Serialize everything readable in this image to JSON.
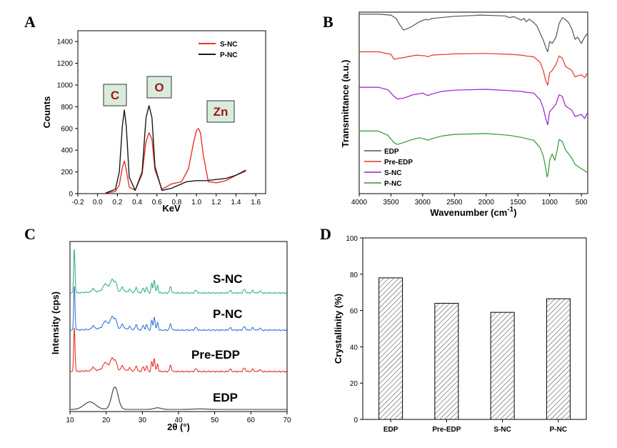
{
  "chart_data": [
    {
      "panel": "A",
      "type": "line",
      "xlabel": "KeV",
      "ylabel": "Counts",
      "xlim": [
        -0.2,
        1.7
      ],
      "ylim": [
        0,
        1500
      ],
      "xticks": [
        "-0.2",
        "0.0",
        "0.2",
        "0.4",
        "0.6",
        "0.8",
        "1.0",
        "1.2",
        "1.4",
        "1.6"
      ],
      "yticks": [
        "0",
        "200",
        "400",
        "600",
        "800",
        "1000",
        "1200",
        "1400"
      ],
      "legend": [
        "S-NC",
        "P-NC"
      ],
      "legend_position": "top-right",
      "annotations": [
        "C",
        "O",
        "Zn"
      ],
      "series": [
        {
          "name": "S-NC",
          "color": "#e8322a",
          "x": [
            0.08,
            0.18,
            0.22,
            0.25,
            0.27,
            0.29,
            0.32,
            0.38,
            0.45,
            0.49,
            0.52,
            0.55,
            0.58,
            0.65,
            0.75,
            0.85,
            0.92,
            0.97,
            1.0,
            1.02,
            1.04,
            1.07,
            1.12,
            1.2,
            1.3,
            1.4,
            1.5
          ],
          "y": [
            5,
            20,
            80,
            240,
            300,
            220,
            60,
            30,
            180,
            480,
            560,
            500,
            220,
            40,
            90,
            110,
            230,
            470,
            580,
            600,
            560,
            350,
            110,
            100,
            120,
            170,
            220
          ]
        },
        {
          "name": "P-NC",
          "color": "#1a1a1a",
          "x": [
            0.08,
            0.18,
            0.22,
            0.25,
            0.27,
            0.29,
            0.32,
            0.38,
            0.45,
            0.49,
            0.52,
            0.55,
            0.58,
            0.65,
            0.75,
            0.9,
            1.0,
            1.1,
            1.2,
            1.3,
            1.4,
            1.5
          ],
          "y": [
            5,
            40,
            200,
            620,
            770,
            620,
            150,
            30,
            200,
            700,
            810,
            700,
            250,
            30,
            50,
            110,
            120,
            120,
            130,
            140,
            170,
            210
          ]
        }
      ]
    },
    {
      "panel": "B",
      "type": "line",
      "xlabel": "Wavenumber (cm⁻¹)",
      "xlabel_main": "Wavenumber (cm",
      "xlabel_sup": "-1",
      "xlabel_close": ")",
      "ylabel": "Transmittance (a.u.)",
      "xlim": [
        4000,
        400
      ],
      "xticks": [
        "4000",
        "3500",
        "3000",
        "2500",
        "2000",
        "1500",
        "1000",
        "500"
      ],
      "legend": [
        "EDP",
        "Pre-EDP",
        "S-NC",
        "P-NC"
      ],
      "legend_position": "bottom-left",
      "series": [
        {
          "name": "EDP",
          "color": "#555555",
          "offset": 3.0,
          "x": [
            4000,
            3700,
            3500,
            3420,
            3350,
            3300,
            3200,
            3050,
            2950,
            2920,
            2850,
            2500,
            2200,
            2100,
            1900,
            1700,
            1640,
            1560,
            1450,
            1400,
            1370,
            1320,
            1250,
            1200,
            1150,
            1100,
            1060,
            1030,
            1000,
            960,
            900,
            850,
            800,
            760,
            700,
            650,
            600,
            560,
            500,
            450,
            400
          ],
          "y": [
            1.0,
            1.0,
            0.98,
            0.9,
            0.72,
            0.62,
            0.68,
            0.82,
            0.88,
            0.86,
            0.9,
            0.95,
            0.97,
            0.98,
            0.97,
            0.96,
            0.92,
            0.94,
            0.86,
            0.9,
            0.82,
            0.88,
            0.8,
            0.72,
            0.55,
            0.38,
            0.2,
            0.1,
            0.35,
            0.3,
            0.45,
            0.78,
            0.92,
            0.88,
            0.8,
            0.65,
            0.4,
            0.45,
            0.3,
            0.45,
            0.55
          ]
        },
        {
          "name": "Pre-EDP",
          "color": "#e8322a",
          "offset": 2.1,
          "x": [
            4000,
            3700,
            3500,
            3450,
            3400,
            3300,
            3100,
            2950,
            2920,
            2850,
            2500,
            2000,
            1640,
            1450,
            1370,
            1250,
            1150,
            1100,
            1060,
            1030,
            1000,
            960,
            900,
            850,
            800,
            750,
            650,
            600,
            500,
            450,
            400
          ],
          "y": [
            1.0,
            1.0,
            0.94,
            0.82,
            0.84,
            0.86,
            0.92,
            0.9,
            0.88,
            0.92,
            0.95,
            0.96,
            0.94,
            0.92,
            0.9,
            0.88,
            0.75,
            0.55,
            0.3,
            0.2,
            0.5,
            0.55,
            0.7,
            0.9,
            0.85,
            0.65,
            0.55,
            0.4,
            0.45,
            0.38,
            0.5
          ]
        },
        {
          "name": "S-NC",
          "color": "#9b1fd1",
          "offset": 1.25,
          "x": [
            4000,
            3700,
            3550,
            3450,
            3400,
            3300,
            3150,
            3000,
            2950,
            2920,
            2850,
            2700,
            2500,
            2000,
            1640,
            1450,
            1370,
            1250,
            1150,
            1100,
            1060,
            1030,
            1000,
            960,
            900,
            850,
            800,
            750,
            650,
            600,
            500,
            450,
            400
          ],
          "y": [
            1.0,
            1.0,
            0.94,
            0.78,
            0.72,
            0.74,
            0.82,
            0.86,
            0.82,
            0.8,
            0.84,
            0.9,
            0.93,
            0.95,
            0.92,
            0.9,
            0.88,
            0.86,
            0.7,
            0.5,
            0.25,
            0.1,
            0.42,
            0.48,
            0.6,
            0.82,
            0.78,
            0.55,
            0.45,
            0.3,
            0.35,
            0.25,
            0.4
          ]
        },
        {
          "name": "P-NC",
          "color": "#2e9a2e",
          "offset": 0.2,
          "x": [
            4000,
            3700,
            3550,
            3450,
            3400,
            3350,
            3200,
            3050,
            2950,
            2920,
            2850,
            2700,
            2500,
            2000,
            1640,
            1450,
            1370,
            1250,
            1150,
            1100,
            1060,
            1040,
            1020,
            1000,
            960,
            920,
            880,
            850,
            800,
            750,
            650,
            600,
            500,
            450,
            400
          ],
          "y": [
            1.0,
            1.0,
            0.9,
            0.72,
            0.68,
            0.7,
            0.78,
            0.84,
            0.8,
            0.78,
            0.82,
            0.88,
            0.92,
            0.94,
            0.9,
            0.85,
            0.82,
            0.78,
            0.6,
            0.4,
            0.1,
            -0.1,
            0.0,
            0.3,
            0.45,
            0.3,
            0.55,
            0.8,
            0.75,
            0.55,
            0.35,
            0.2,
            0.1,
            0.05,
            0.0
          ]
        }
      ]
    },
    {
      "panel": "C",
      "type": "line",
      "xlabel": "2θ (°)",
      "ylabel": "Intensity (cps)",
      "xlim": [
        10,
        70
      ],
      "xticks": [
        "10",
        "20",
        "30",
        "40",
        "50",
        "60",
        "70"
      ],
      "labels": [
        "S-NC",
        "P-NC",
        "Pre-EDP",
        "EDP"
      ],
      "series": [
        {
          "name": "S-NC",
          "color": "#3bb57a",
          "offset": 3.0,
          "type": "crystalline"
        },
        {
          "name": "P-NC",
          "color": "#3a78d8",
          "offset": 2.0,
          "type": "crystalline"
        },
        {
          "name": "Pre-EDP",
          "color": "#e8322a",
          "offset": 1.0,
          "type": "crystalline"
        },
        {
          "name": "EDP",
          "color": "#3a3a3a",
          "offset": 0.0,
          "type": "amorphous"
        }
      ]
    },
    {
      "panel": "D",
      "type": "bar",
      "categories": [
        "EDP",
        "Pre-EDP",
        "S-NC",
        "P-NC"
      ],
      "values": [
        78,
        64,
        59,
        66.5
      ],
      "ylabel": "Crystallinity (%)",
      "ylim": [
        0,
        100
      ],
      "yticks": [
        "0",
        "20",
        "40",
        "60",
        "80",
        "100"
      ],
      "bar_fill": "hatched-gray"
    }
  ]
}
